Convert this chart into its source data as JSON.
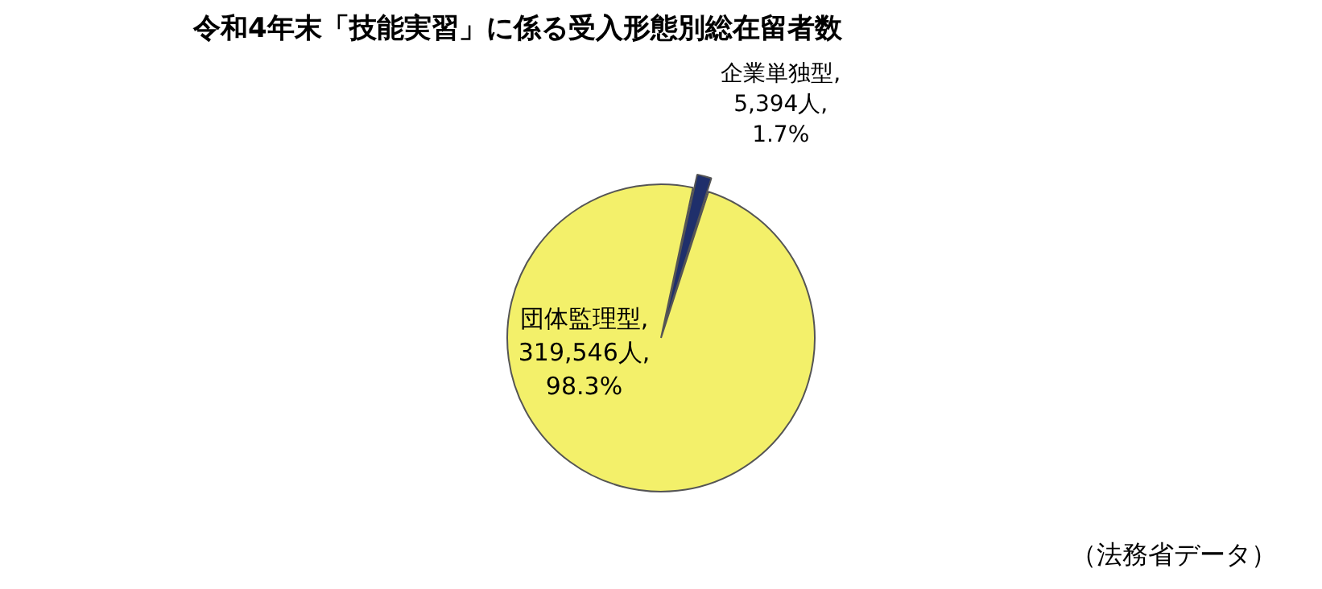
{
  "chart_data": {
    "type": "pie",
    "title": "令和4年末「技能実習」に係る受入形態別総在留者数",
    "categories": [
      "企業単独型",
      "団体監理型"
    ],
    "values": [
      5394,
      319546
    ],
    "colors": [
      "#1f2f6b",
      "#f3f06a"
    ],
    "value_labels": [
      ",\n5,394人,\n1.7%",
      ",\n319,546人,\n98.3%"
    ],
    "annotations": [
      "（法務省データ）"
    ],
    "legend": false
  }
}
